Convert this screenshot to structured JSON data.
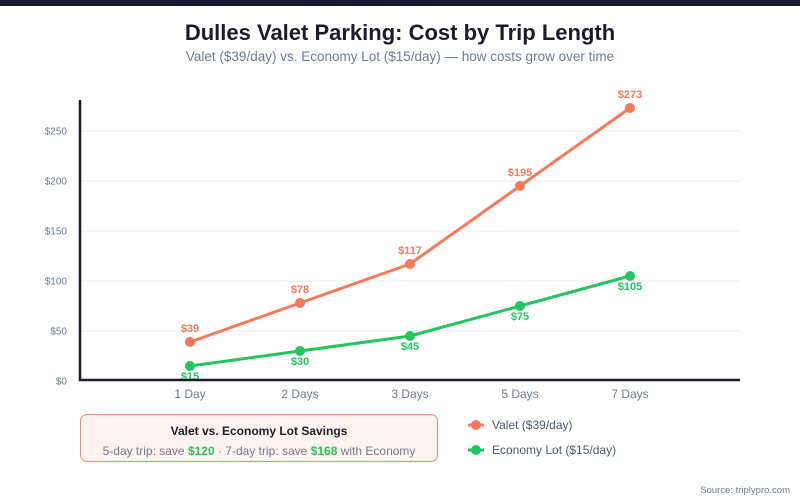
{
  "chart_data": {
    "type": "line",
    "title": "Dulles Valet Parking: Cost by Trip Length",
    "subtitle": "Valet ($39/day) vs. Economy Lot ($15/day) — how costs grow over time",
    "xlabel": "",
    "ylabel": "",
    "categories": [
      "1 Day",
      "2 Days",
      "3 Days",
      "5 Days",
      "7 Days"
    ],
    "series": [
      {
        "name": "Valet ($39/day)",
        "color": "#f47a5a",
        "values": [
          39,
          78,
          117,
          195,
          273
        ],
        "labels": [
          "$39",
          "$78",
          "$117",
          "$195",
          "$273"
        ],
        "label_position": "above"
      },
      {
        "name": "Economy Lot ($15/day)",
        "color": "#22c55e",
        "values": [
          15,
          30,
          45,
          75,
          105
        ],
        "labels": [
          "$15",
          "$30",
          "$45",
          "$75",
          "$105"
        ],
        "label_position": "below"
      }
    ],
    "yticks": [
      0,
      50,
      100,
      150,
      200,
      250
    ],
    "ytick_labels": [
      "$0",
      "$50",
      "$100",
      "$150",
      "$200",
      "$250"
    ],
    "ylim": [
      0,
      280
    ],
    "grid": true,
    "legend": "bottom-right"
  },
  "savings_box": {
    "title": "Valet vs. Economy Lot Savings",
    "prefix_5day": "5-day trip: save ",
    "amount_5day": "$120",
    "separator": " · 7-day trip: save ",
    "amount_7day": "$168",
    "suffix": " with Economy"
  },
  "source": "Source: triplypro.com",
  "colors": {
    "valet": "#f47a5a",
    "economy": "#22c55e",
    "savings": "#22c55e",
    "axis": "#1b1b2f",
    "grid": "#eef2f7"
  }
}
